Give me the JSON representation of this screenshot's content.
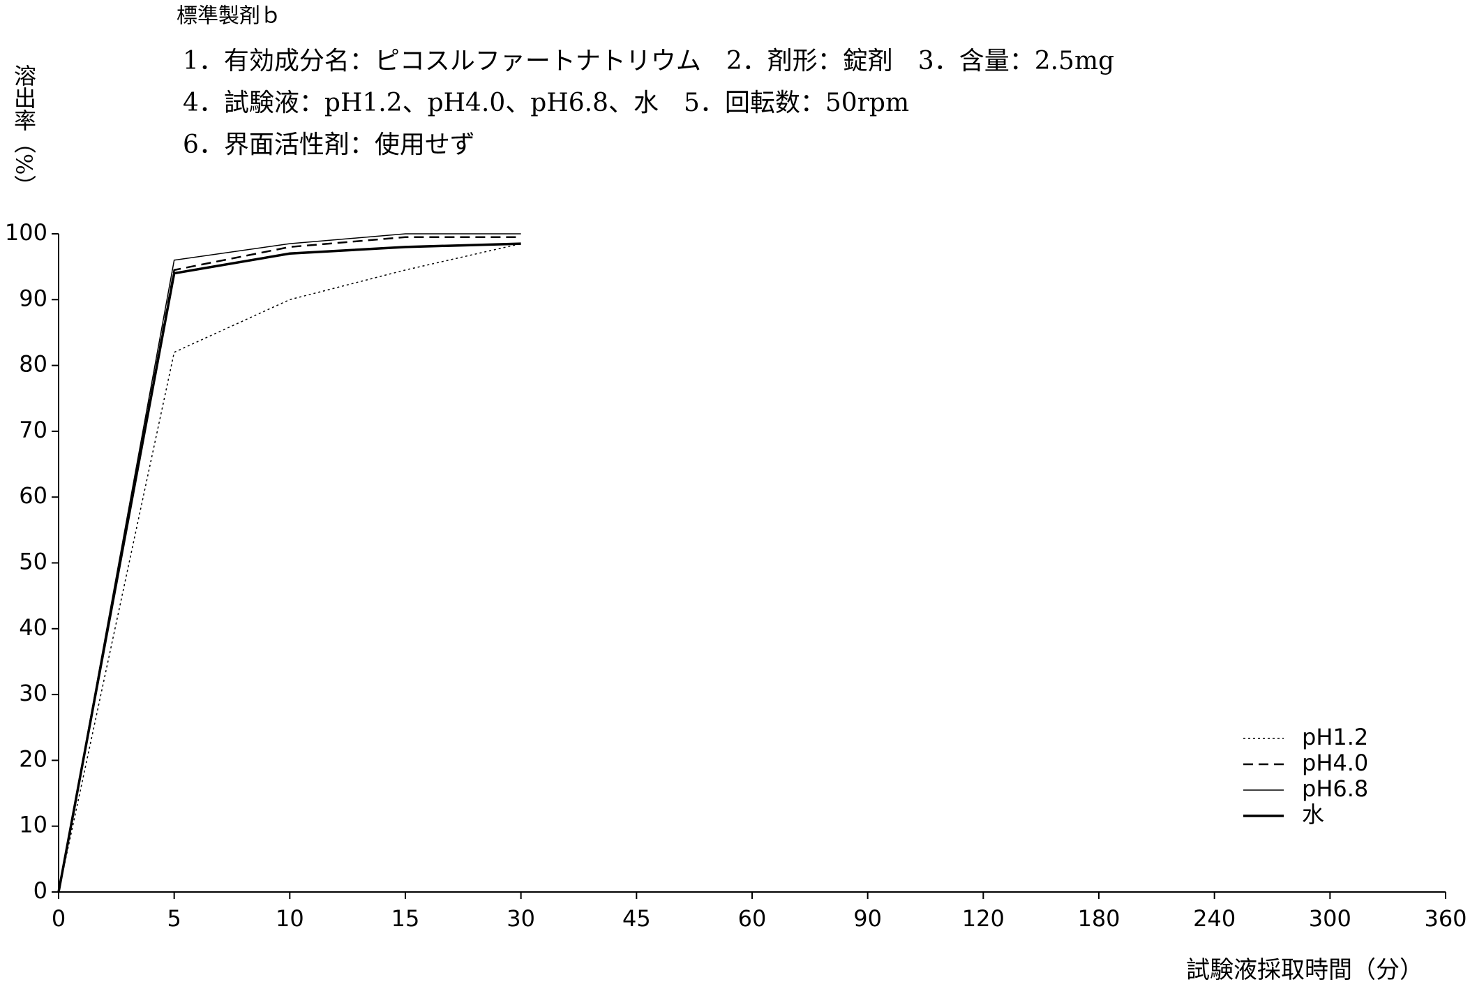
{
  "chart_data": {
    "type": "line",
    "title": "標準製剤ｂ",
    "subtitle_lines": [
      "1．有効成分名：ピコスルファートナトリウム　2．剤形：錠剤　3．含量：2.5mg",
      "4．試験液：pH1.2、pH4.0、pH6.8、水　5．回転数：50rpm",
      "6．界面活性剤：使用せず"
    ],
    "y_label": "溶出率（%）",
    "x_label": "試験液採取時間（分）",
    "categories": [
      "0",
      "5",
      "10",
      "15",
      "30",
      "45",
      "60",
      "90",
      "120",
      "180",
      "240",
      "300",
      "360"
    ],
    "series": [
      {
        "name": "pH1.2",
        "color": "#000000",
        "style": "dotted",
        "values": [
          0,
          82,
          90,
          94.5,
          98.5,
          null,
          null,
          null,
          null,
          null,
          null,
          null,
          null
        ]
      },
      {
        "name": "pH4.0",
        "color": "#000000",
        "style": "dashed",
        "values": [
          0,
          94.5,
          98,
          99.5,
          99.5,
          null,
          null,
          null,
          null,
          null,
          null,
          null,
          null
        ]
      },
      {
        "name": "pH6.8",
        "color": "#000000",
        "style": "thin",
        "values": [
          0,
          96,
          98.5,
          100,
          100,
          null,
          null,
          null,
          null,
          null,
          null,
          null,
          null
        ]
      },
      {
        "name": "水",
        "color": "#000000",
        "style": "solid",
        "values": [
          0,
          94,
          97,
          98,
          98.5,
          null,
          null,
          null,
          null,
          null,
          null,
          null,
          null
        ]
      }
    ],
    "ylim": [
      0,
      100
    ],
    "yticks": [
      0,
      10,
      20,
      30,
      40,
      50,
      60,
      70,
      80,
      90,
      100
    ],
    "grid": false,
    "legend": "lower-right"
  }
}
